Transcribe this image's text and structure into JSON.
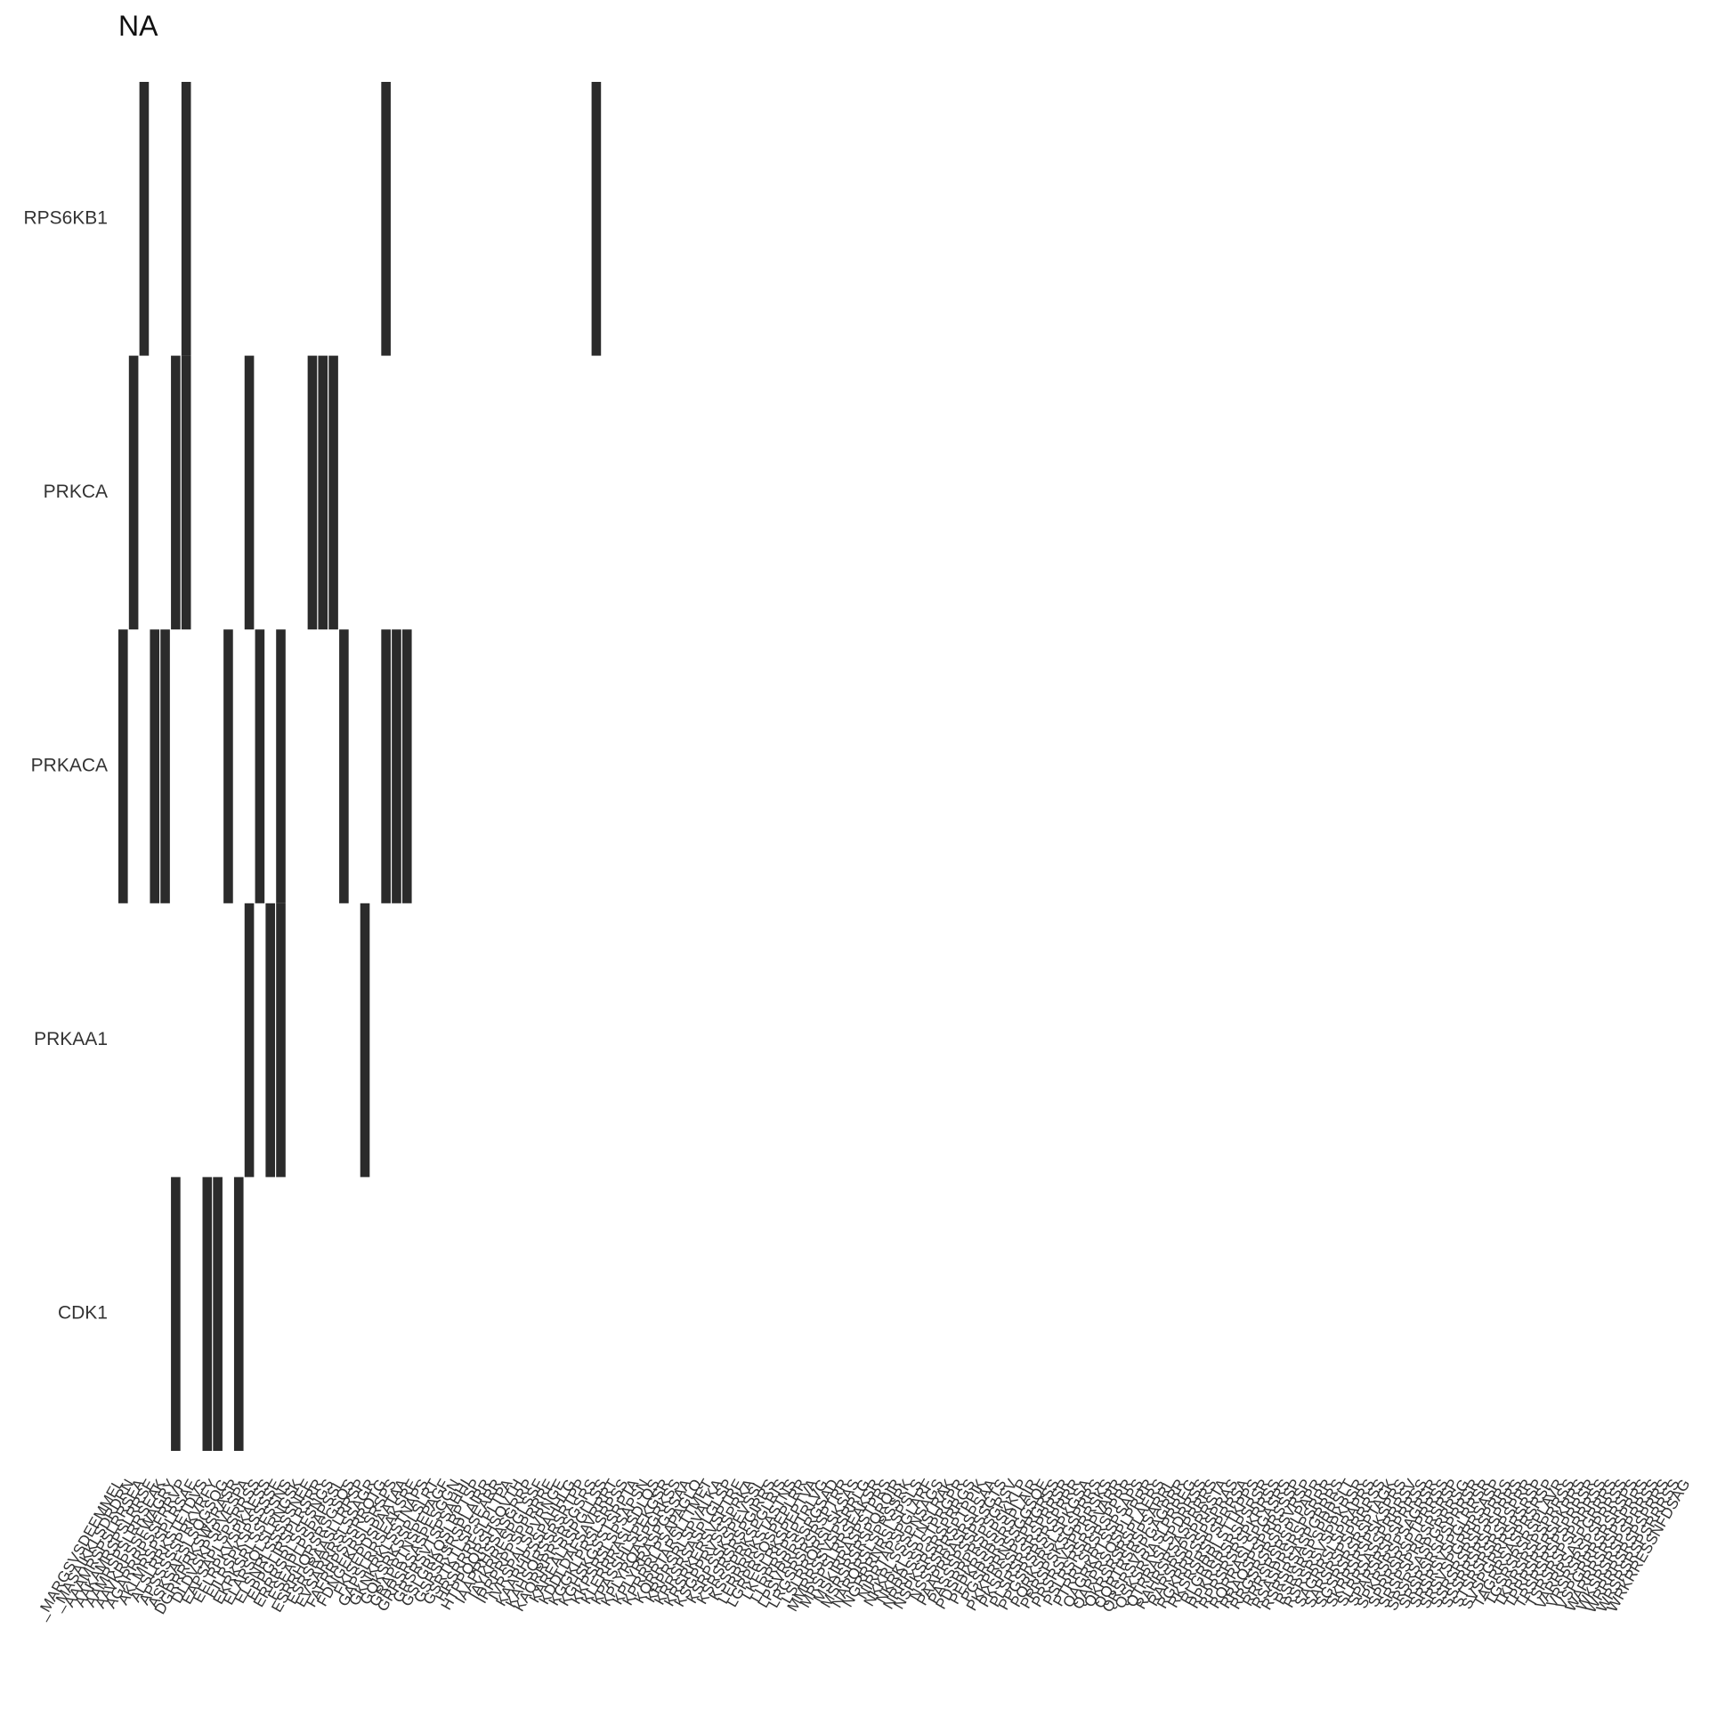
{
  "chart_data": {
    "type": "heatmap",
    "title": "NA",
    "xlabel": "",
    "ylabel": "",
    "legend": "none",
    "grid": false,
    "value_colors": {
      "1": "#2b2b2b",
      "0": "#ffffff"
    },
    "rows": [
      "RPS6KB1",
      "PRKCA",
      "PRKACA",
      "PRKAA1",
      "CDK1"
    ],
    "columns": [
      "_MARGSVSDEEMMEL",
      "_MASAIKKLSDRDRN",
      "AAAMRSPSLRRSEA",
      "AAKAMRSPSLRRSE",
      "AAMRSPSLRRSEAK",
      "AAVKRPSSFWAGRY",
      "AGARRRPSSFRRVP",
      "AKLMRSPSPLRSAE",
      "ALSLRRKSTETDVS",
      "APSSSSSPRKVRFY",
      "ASKSAFSLSQGSQG",
      "DGRRRRKSWSRASR",
      "DLDVSKPSPVESPA",
      "EAPSAPLSPSRRSS",
      "EFLRPKVSPKAESS",
      "EILRSPKSPSSSSE",
      "EKRKSRLSSFSSNS",
      "ELARSQLSLRNGSK",
      "ELSNRLSSSSSNEE",
      "EPPGLIRSPLRSRR",
      "ERRRSRLSSFSNGS",
      "ESEAPLPSPAPSSL",
      "ESRRHQRSRSGSQS",
      "ESRSRAASLLRRSP",
      "EVSARRRSLSSAGR",
      "FAFRRPSSSRRQTG",
      "FDNGEKRSLSRSPS",
      "FKISEPDSPAATAA",
      "GAPSLRRSEAKSRE",
      "GKNKRKLSSTNAPS",
      "GQKSRKSSPLSLRT",
      "GRAPRTNSPEPAGF",
      "GRRSRSASPESGGN",
      "GRSRSVTSPSAHHI",
      "GSLGRKQSLRPTSP",
      "GSRSRSRSPLAIRR",
      "GSRTKTLSPSEARR",
      "HRSRRRFSLPLTPA",
      "HTPPQQRSHSQVTH",
      "IAAPRHSSASGRRP",
      "IAYKRRESPGLSSF",
      "IRRPRPPSPPRRRE",
      "IVRSPALSPVRNGE",
      "KAARHPSSPAHHLG",
      "KAHSQRSSRSRTPP",
      "KAQRRRRSRSGSRS",
      "KAREALRSPGLLSS",
      "KDDLDAFSAVRRRT",
      "KGGKLPRSLSRPSS",
      "KGHSKGSSTSRPTA",
      "KKPSRSLSPSAPSN",
      "KLERRRASLSDLQS",
      "KPASSHLSPEKGSR",
      "KPLYRQASPGRKSS",
      "KPLYRRASPGSSAA",
      "KPRRRLPSAPAGLQ",
      "KQRRTARSLTTMET",
      "KRPRSRLSPVALKA",
      "KRRSRSASPLGLSP",
      "KRSRKERSVSPTRE",
      "KSGPPRVSSSPRKA",
      "KSRPSSKSPEVSSL",
      "KSRSRSRSPGIRRS",
      "KSSSPRKSPGLRIS",
      "LERRRRKSTASTNS",
      "LGRPRSQSPEPLRR",
      "LKFSLRKSPEPTVA",
      "LLRRRSPSPTRLVG",
      "LPSVRRRSSRGSAD",
      "LRGSRSRSRSPTRR",
      "LSLRRQRSLSKSAS",
      "MMRRSSVSPSRRLG",
      "MRSPSLRRSEAKSR",
      "MSKIRRASPSTPRS",
      "MSRSRSRSPQRQIR",
      "NARQRSLSPRSSRK",
      "NGRRRNRSLSPSLS",
      "NIRRTAPSPGLARF",
      "NKKRLSSSPNSAGS",
      "NKRKLSSTNSLRAK",
      "NRRRSSPSTPRGPR",
      "NSPKSRSRSPRRGS",
      "NSSSSRRSPTPPIK",
      "PAAPRRASRSPSAA",
      "PASSSPSSPSSGTS",
      "PDSRRPRSPSGRSV",
      "PEPKRSRSPSKKLP",
      "PGSRSRSRSPLAIR",
      "PKKPRRNSSGGSQE",
      "PKSPSSPSPRGRSS",
      "PLSRSRSRSPRRSR",
      "PPGSRSRSRSPRRR",
      "PQRKSRSLSPKGSA",
      "PRRSPSKSGSPRRS",
      "PRSRSVSPPRRSKS",
      "PSLRSRSRSPVARR",
      "PTRRLSRSRSPPRR",
      "QAGRKRTSSPSAPS",
      "QARPRSQSPLPRRR",
      "QKRSRSRSPLAERS",
      "QQRTRSRSPSARRL",
      "QRSRSVSPGAGRRR",
      "QSKSRRASLPRREG",
      "QTRRASLSPDRRSS",
      "RAHRSRSASPRRRS",
      "RARSRSPSPRRSTA",
      "RGKRRPSSPSPRAS",
      "RKSRSRSPSPRRSA",
      "RLGRRRLSTTKPPS",
      "RPKRSRSRSPSRSR",
      "RPRSRSRSPKRRSS",
      "RQRRASLSPGASRS",
      "RRAQSPSPRRSSSP",
      "RRGSRSRSPSVRSP",
      "RRRSRSRSPLPAPR",
      "RSASPRSRSPSRRR",
      "RSRSRSASPGRRRS",
      "RSRSRSPSPRRSLT",
      "RSRSRSVSPPKRSR",
      "SAGRRSLSPRAPRS",
      "SARSRSPSPRRRSS",
      "SGSRSRSRSPTAGK",
      "SKRRSRSPSKSPRS",
      "SLRRSASSPRRRSV",
      "SPARSRSPSPRRSS",
      "SPKRSRSPSAGRSR",
      "SPRRSRSPTPRRSS",
      "SRSPSPRRSRSRSP",
      "SRSRSASPGRRRSG",
      "SRSRSRSPSPRRSR",
      "SRSRSVSPGLRRSR",
      "SRSVSPGRRRSASP",
      "SSRSRSRSPSPRRS",
      "SSSRRSRSPSPRRS",
      "STSRSRSRSPSPRR",
      "SVSPGRRRSRSRSP",
      "TAGRRSASPRSRSP",
      "TGSRSRSRSPLAVR",
      "TKRRSRSPSPRRSS",
      "TPRRSRSRSPKRRS",
      "TRSRSRSPSPRRSR",
      "TSRSRSPSPRRRSS",
      "VARRRSASPGRRRS",
      "VRSRSRSPSPRRSS",
      "VSPGRRRSRSRSPS",
      "WARRRSRSPSPRRS",
      "WKSRSRSPSPRRSS",
      "WRRRRSRSPSPRRS",
      "WRSRSRSPSRRRSS",
      "WRKRRESSNFDSAG"
    ],
    "matrix": [
      [
        0,
        0,
        1,
        0,
        0,
        0,
        1,
        0,
        0,
        0,
        0,
        0,
        0,
        0,
        0,
        0,
        0,
        0,
        0,
        0,
        0,
        0,
        0,
        0,
        0,
        1,
        0,
        0,
        0,
        0,
        0,
        0,
        0,
        0,
        0,
        0,
        0,
        0,
        0,
        0,
        0,
        0,
        0,
        0,
        0,
        1,
        0,
        0,
        0,
        0,
        0,
        0,
        0,
        0,
        0,
        0,
        0,
        0,
        0,
        0,
        0,
        0,
        0,
        0,
        0,
        0,
        0,
        0,
        0,
        0,
        0,
        0,
        0,
        0,
        0,
        0,
        0,
        0,
        0,
        0,
        0,
        0,
        0,
        0,
        0,
        0,
        0,
        0,
        0,
        0,
        0,
        0,
        0,
        0,
        0,
        0,
        0,
        0,
        0,
        0,
        0,
        0,
        0,
        0,
        0,
        0,
        0,
        0,
        0,
        0,
        0,
        0,
        0,
        0,
        0,
        0,
        0,
        0,
        0,
        0,
        0,
        0,
        0,
        0,
        0,
        0,
        0,
        0,
        0,
        0,
        0,
        0,
        0,
        0,
        0,
        0,
        0,
        0,
        0,
        0,
        0,
        0,
        0,
        0,
        0,
        0,
        0,
        0
      ],
      [
        0,
        1,
        0,
        0,
        0,
        1,
        1,
        0,
        0,
        0,
        0,
        0,
        1,
        0,
        0,
        0,
        0,
        0,
        1,
        1,
        1,
        0,
        0,
        0,
        0,
        0,
        0,
        0,
        0,
        0,
        0,
        0,
        0,
        0,
        0,
        0,
        0,
        0,
        0,
        0,
        0,
        0,
        0,
        0,
        0,
        0,
        0,
        0,
        0,
        0,
        0,
        0,
        0,
        0,
        0,
        0,
        0,
        0,
        0,
        0,
        0,
        0,
        0,
        0,
        0,
        0,
        0,
        0,
        0,
        0,
        0,
        0,
        0,
        0,
        0,
        0,
        0,
        0,
        0,
        0,
        0,
        0,
        0,
        0,
        0,
        0,
        0,
        0,
        0,
        0,
        0,
        0,
        0,
        0,
        0,
        0,
        0,
        0,
        0,
        0,
        0,
        0,
        0,
        0,
        0,
        0,
        0,
        0,
        0,
        0,
        0,
        0,
        0,
        0,
        0,
        0,
        0,
        0,
        0,
        0,
        0,
        0,
        0,
        0,
        0,
        0,
        0,
        0,
        0,
        0,
        0,
        0,
        0,
        0,
        0,
        0,
        0,
        0,
        0,
        0,
        0,
        0,
        0,
        0,
        0,
        0,
        0,
        0
      ],
      [
        1,
        0,
        0,
        1,
        1,
        0,
        0,
        0,
        0,
        0,
        1,
        0,
        0,
        1,
        0,
        1,
        0,
        0,
        0,
        0,
        0,
        1,
        0,
        0,
        0,
        1,
        1,
        1,
        0,
        0,
        0,
        0,
        0,
        0,
        0,
        0,
        0,
        0,
        0,
        0,
        0,
        0,
        0,
        0,
        0,
        0,
        0,
        0,
        0,
        0,
        0,
        0,
        0,
        0,
        0,
        0,
        0,
        0,
        0,
        0,
        0,
        0,
        0,
        0,
        0,
        0,
        0,
        0,
        0,
        0,
        0,
        0,
        0,
        0,
        0,
        0,
        0,
        0,
        0,
        0,
        0,
        0,
        0,
        0,
        0,
        0,
        0,
        0,
        0,
        0,
        0,
        0,
        0,
        0,
        0,
        0,
        0,
        0,
        0,
        0,
        0,
        0,
        0,
        0,
        0,
        0,
        0,
        0,
        0,
        0,
        0,
        0,
        0,
        0,
        0,
        0,
        0,
        0,
        0,
        0,
        0,
        0,
        0,
        0,
        0,
        0,
        0,
        0,
        0,
        0,
        0,
        0,
        0,
        0,
        0,
        0,
        0,
        0,
        0,
        0,
        0,
        0,
        0,
        0,
        0,
        0,
        0,
        0
      ],
      [
        0,
        0,
        0,
        0,
        0,
        0,
        0,
        0,
        0,
        0,
        0,
        0,
        1,
        0,
        1,
        1,
        0,
        0,
        0,
        0,
        0,
        0,
        0,
        1,
        0,
        0,
        0,
        0,
        0,
        0,
        0,
        0,
        0,
        0,
        0,
        0,
        0,
        0,
        0,
        0,
        0,
        0,
        0,
        0,
        0,
        0,
        0,
        0,
        0,
        0,
        0,
        0,
        0,
        0,
        0,
        0,
        0,
        0,
        0,
        0,
        0,
        0,
        0,
        0,
        0,
        0,
        0,
        0,
        0,
        0,
        0,
        0,
        0,
        0,
        0,
        0,
        0,
        0,
        0,
        0,
        0,
        0,
        0,
        0,
        0,
        0,
        0,
        0,
        0,
        0,
        0,
        0,
        0,
        0,
        0,
        0,
        0,
        0,
        0,
        0,
        0,
        0,
        0,
        0,
        0,
        0,
        0,
        0,
        0,
        0,
        0,
        0,
        0,
        0,
        0,
        0,
        0,
        0,
        0,
        0,
        0,
        0,
        0,
        0,
        0,
        0,
        0,
        0,
        0,
        0,
        0,
        0,
        0,
        0,
        0,
        0,
        0,
        0,
        0,
        0,
        0,
        0,
        0,
        0,
        0,
        0,
        0,
        0
      ],
      [
        0,
        0,
        0,
        0,
        0,
        1,
        0,
        0,
        1,
        1,
        0,
        1,
        0,
        0,
        0,
        0,
        0,
        0,
        0,
        0,
        0,
        0,
        0,
        0,
        0,
        0,
        0,
        0,
        0,
        0,
        0,
        0,
        0,
        0,
        0,
        0,
        0,
        0,
        0,
        0,
        0,
        0,
        0,
        0,
        0,
        0,
        0,
        0,
        0,
        0,
        0,
        0,
        0,
        0,
        0,
        0,
        0,
        0,
        0,
        0,
        0,
        0,
        0,
        0,
        0,
        0,
        0,
        0,
        0,
        0,
        0,
        0,
        0,
        0,
        0,
        0,
        0,
        0,
        0,
        0,
        0,
        0,
        0,
        0,
        0,
        0,
        0,
        0,
        0,
        0,
        0,
        0,
        0,
        0,
        0,
        0,
        0,
        0,
        0,
        0,
        0,
        0,
        0,
        0,
        0,
        0,
        0,
        0,
        0,
        0,
        0,
        0,
        0,
        0,
        0,
        0,
        0,
        0,
        0,
        0,
        0,
        0,
        0,
        0,
        0,
        0,
        0,
        0,
        0,
        0,
        0,
        0,
        0,
        0,
        0,
        0,
        0,
        0,
        0,
        0,
        0,
        0,
        0,
        0,
        0,
        0,
        0,
        0
      ]
    ]
  }
}
